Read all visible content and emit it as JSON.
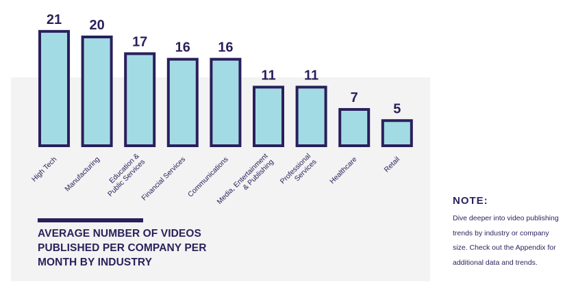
{
  "chart_data": {
    "type": "bar",
    "title": "AVERAGE NUMBER OF VIDEOS PUBLISHED PER COMPANY PER MONTH BY INDUSTRY",
    "title_lines": [
      "AVERAGE NUMBER OF VIDEOS",
      "PUBLISHED PER COMPANY PER",
      "MONTH BY INDUSTRY"
    ],
    "xlabel": "",
    "ylabel": "",
    "ylim": [
      0,
      21
    ],
    "grid": false,
    "legend": "none",
    "categories": [
      "High Tech",
      "Manufacturing",
      "Education & Public Services",
      "Financial Services",
      "Communications",
      "Media, Entertainment & Publishing",
      "Professional Services",
      "Healthcare",
      "Retail"
    ],
    "category_label_lines": [
      [
        "High Tech"
      ],
      [
        "Manufacturing"
      ],
      [
        "Education &",
        "Public Services"
      ],
      [
        "Financial Services"
      ],
      [
        "Communications"
      ],
      [
        "Media, Entertainment",
        "& Publishing"
      ],
      [
        "Professional",
        "Services"
      ],
      [
        "Healthcare"
      ],
      [
        "Retail"
      ]
    ],
    "values": [
      21,
      20,
      17,
      16,
      16,
      11,
      11,
      7,
      5
    ],
    "colors": {
      "bar_fill": "#a3dbe4",
      "bar_outline": "#2a1f5b",
      "text": "#2a1f5b",
      "panel": "#f2f3f2"
    }
  },
  "note": {
    "heading": "NOTE:",
    "lines": [
      "Dive deeper into video publishing",
      "trends  by industry or company",
      "size. Check out the Appendix  for",
      "additional data and trends."
    ]
  }
}
